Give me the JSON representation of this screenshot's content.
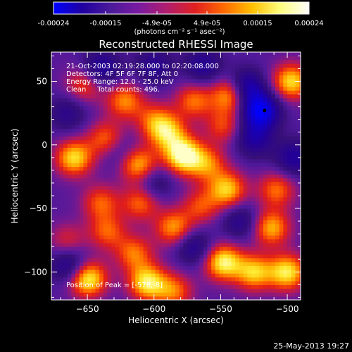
{
  "chart_data": {
    "type": "heatmap",
    "title": "Reconstructed RHESSI Image",
    "xlabel": "Heliocentric X (arcsec)",
    "ylabel": "Heliocentric Y (arcsec)",
    "xlim": [
      -677,
      -490
    ],
    "ylim": [
      -122,
      73
    ],
    "xticks": [
      -650,
      -600,
      -550,
      -500
    ],
    "yticks": [
      50,
      0,
      -50,
      -100
    ],
    "colorbar": {
      "range": [
        -0.00024,
        0.00024
      ],
      "ticks": [
        "-0.00024",
        "-0.00015",
        "-4.9e-05",
        "4.9e-05",
        "0.00015",
        "0.00024"
      ],
      "unit_label": "(photons cm⁻² s⁻¹ asec⁻²)",
      "colors": [
        "#0000ff",
        "#2000a0",
        "#4a1a9a",
        "#7a1aa0",
        "#b01e6e",
        "#e02020",
        "#ff6a00",
        "#ffc000",
        "#ffff80",
        "#ffffff"
      ]
    },
    "info_lines": [
      "21-Oct-2003 02:19:28.000 to 02:20:08.000",
      "Detectors: 4F 5F 6F 7F 8F, Att 0",
      "Energy Range: 12.0 - 25.0 keV",
      "Clean     Total counts: 496."
    ],
    "peak_label": "Position of Peak = [-578,-8]",
    "peak": [
      -578,
      -8
    ],
    "marker": [
      -517,
      27
    ],
    "blobs": [
      {
        "x": -578,
        "y": -8,
        "v": 1.0
      },
      {
        "x": -590,
        "y": 10,
        "v": 0.7
      },
      {
        "x": -612,
        "y": -15,
        "v": 0.75
      },
      {
        "x": -636,
        "y": 5,
        "v": 0.55
      },
      {
        "x": -652,
        "y": 48,
        "v": 0.5
      },
      {
        "x": -622,
        "y": 35,
        "v": 0.6
      },
      {
        "x": -600,
        "y": 20,
        "v": 0.45
      },
      {
        "x": -570,
        "y": 35,
        "v": 0.55
      },
      {
        "x": -548,
        "y": 15,
        "v": 0.45
      },
      {
        "x": -542,
        "y": 40,
        "v": 0.85
      },
      {
        "x": -560,
        "y": -15,
        "v": 0.55
      },
      {
        "x": -545,
        "y": -35,
        "v": 0.75
      },
      {
        "x": -565,
        "y": -48,
        "v": 0.45
      },
      {
        "x": -660,
        "y": -10,
        "v": 0.8
      },
      {
        "x": -640,
        "y": -45,
        "v": 0.5
      },
      {
        "x": -610,
        "y": -45,
        "v": 0.55
      },
      {
        "x": -585,
        "y": -65,
        "v": 0.65
      },
      {
        "x": -635,
        "y": -68,
        "v": 0.5
      },
      {
        "x": -615,
        "y": -85,
        "v": 0.55
      },
      {
        "x": -650,
        "y": -105,
        "v": 0.95
      },
      {
        "x": -605,
        "y": -108,
        "v": 0.85
      },
      {
        "x": -548,
        "y": -92,
        "v": 0.9
      },
      {
        "x": -525,
        "y": -100,
        "v": 0.75
      },
      {
        "x": -500,
        "y": -100,
        "v": 0.85
      },
      {
        "x": -512,
        "y": -65,
        "v": 0.7
      },
      {
        "x": -508,
        "y": -35,
        "v": 0.55
      },
      {
        "x": -497,
        "y": 50,
        "v": 0.8
      },
      {
        "x": -585,
        "y": -115,
        "v": 0.55
      },
      {
        "x": -665,
        "y": -75,
        "v": 0.35
      },
      {
        "x": -520,
        "y": 27,
        "v": -0.95
      },
      {
        "x": -532,
        "y": 45,
        "v": -0.8
      },
      {
        "x": -525,
        "y": 5,
        "v": -0.5
      },
      {
        "x": -663,
        "y": -95,
        "v": -0.55
      },
      {
        "x": -640,
        "y": 60,
        "v": -0.55
      },
      {
        "x": -600,
        "y": 62,
        "v": -0.4
      },
      {
        "x": -563,
        "y": 62,
        "v": -0.45
      },
      {
        "x": -570,
        "y": -80,
        "v": -0.45
      },
      {
        "x": -600,
        "y": -30,
        "v": -0.35
      },
      {
        "x": -665,
        "y": 25,
        "v": -0.35
      },
      {
        "x": -535,
        "y": -60,
        "v": -0.4
      },
      {
        "x": -495,
        "y": -10,
        "v": -0.5
      },
      {
        "x": -625,
        "y": -5,
        "v": -0.3
      }
    ]
  },
  "footer": {
    "date": "25-May-2013 19:27"
  }
}
